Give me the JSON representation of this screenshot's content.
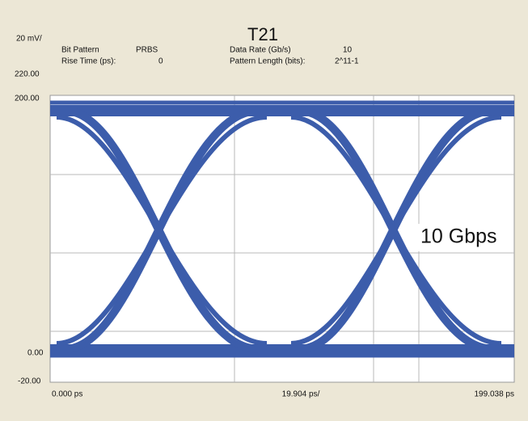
{
  "header": {
    "scale": "20 mV/",
    "title": "T21"
  },
  "info": {
    "bit_pattern_label": "Bit Pattern",
    "bit_pattern": "PRBS",
    "rise_time_label": "Rise Time (ps):",
    "rise_time": "0",
    "data_rate_label": "Data Rate (Gb/s)",
    "data_rate": "10",
    "pattern_length_label": "Pattern Length (bits):",
    "pattern_length": "2^11-1"
  },
  "y_axis": [
    "220.00",
    "200.00",
    "0.00",
    "-20.00"
  ],
  "x_axis": [
    "0.000 ps",
    "19.904 ps/",
    "199.038 ps"
  ],
  "annotation": "10 Gbps"
}
